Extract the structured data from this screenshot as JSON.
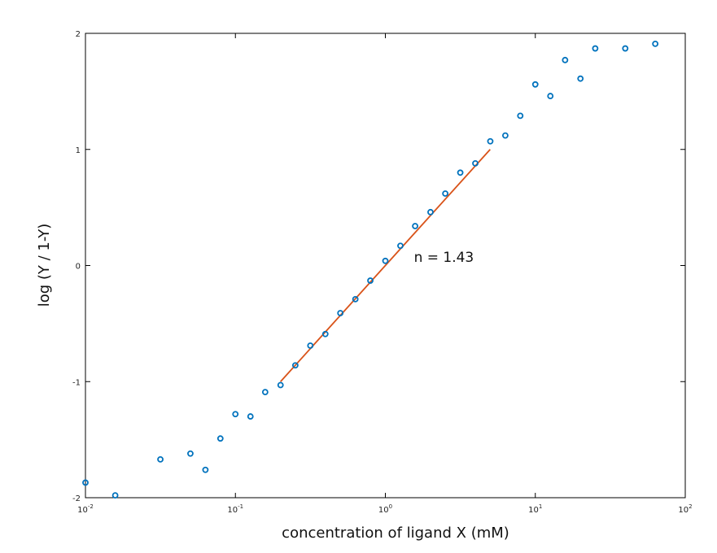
{
  "chart_data": {
    "type": "scatter",
    "title": "",
    "xlabel": "concentration of ligand X (mM)",
    "ylabel": "log (Y / 1-Y)",
    "x_scale": "log",
    "xlim": [
      0.01,
      100
    ],
    "ylim": [
      -2,
      2
    ],
    "x_ticks": [
      {
        "value": 0.01,
        "base": "10",
        "exp": "-2"
      },
      {
        "value": 0.1,
        "base": "10",
        "exp": "-1"
      },
      {
        "value": 1,
        "base": "10",
        "exp": "0"
      },
      {
        "value": 10,
        "base": "10",
        "exp": "1"
      },
      {
        "value": 100,
        "base": "10",
        "exp": "2"
      }
    ],
    "y_ticks": [
      {
        "value": -2,
        "label": "-2"
      },
      {
        "value": -1,
        "label": "-1"
      },
      {
        "value": 0,
        "label": "0"
      },
      {
        "value": 1,
        "label": "1"
      },
      {
        "value": 2,
        "label": "2"
      }
    ],
    "grid": false,
    "series": [
      {
        "type": "scatter",
        "marker": "open-circle",
        "color": "#0072bd",
        "points": [
          {
            "x": 0.01,
            "y": -1.87
          },
          {
            "x": 0.0158,
            "y": -1.98
          },
          {
            "x": 0.0316,
            "y": -1.67
          },
          {
            "x": 0.0501,
            "y": -1.62
          },
          {
            "x": 0.0631,
            "y": -1.76
          },
          {
            "x": 0.0794,
            "y": -1.49
          },
          {
            "x": 0.1,
            "y": -1.28
          },
          {
            "x": 0.126,
            "y": -1.3
          },
          {
            "x": 0.158,
            "y": -1.09
          },
          {
            "x": 0.2,
            "y": -1.03
          },
          {
            "x": 0.251,
            "y": -0.86
          },
          {
            "x": 0.316,
            "y": -0.69
          },
          {
            "x": 0.398,
            "y": -0.59
          },
          {
            "x": 0.501,
            "y": -0.41
          },
          {
            "x": 0.631,
            "y": -0.29
          },
          {
            "x": 0.794,
            "y": -0.13
          },
          {
            "x": 1.0,
            "y": 0.04
          },
          {
            "x": 1.26,
            "y": 0.17
          },
          {
            "x": 1.58,
            "y": 0.34
          },
          {
            "x": 2.0,
            "y": 0.46
          },
          {
            "x": 2.51,
            "y": 0.62
          },
          {
            "x": 3.16,
            "y": 0.8
          },
          {
            "x": 3.98,
            "y": 0.88
          },
          {
            "x": 5.01,
            "y": 1.07
          },
          {
            "x": 6.31,
            "y": 1.12
          },
          {
            "x": 7.94,
            "y": 1.29
          },
          {
            "x": 10.0,
            "y": 1.56
          },
          {
            "x": 12.6,
            "y": 1.46
          },
          {
            "x": 15.8,
            "y": 1.77
          },
          {
            "x": 20.0,
            "y": 1.61
          },
          {
            "x": 25.1,
            "y": 1.87
          },
          {
            "x": 39.8,
            "y": 1.87
          },
          {
            "x": 63.1,
            "y": 1.91
          }
        ]
      },
      {
        "type": "line",
        "color": "#d95319",
        "points": [
          {
            "x": 0.2,
            "y": -1.0
          },
          {
            "x": 5.0,
            "y": 1.0
          }
        ]
      }
    ],
    "annotations": [
      {
        "text": "n = 1.43",
        "x": 1.55,
        "y": 0.03
      }
    ]
  }
}
